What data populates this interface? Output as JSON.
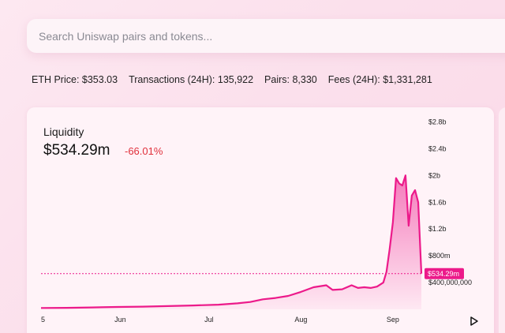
{
  "search": {
    "placeholder": "Search Uniswap pairs and tokens..."
  },
  "stats": {
    "eth_price": "ETH Price: $353.03",
    "transactions": "Transactions (24H): 135,922",
    "pairs": "Pairs: 8,330",
    "fees": "Fees (24H): $1,331,281"
  },
  "liquidity_card": {
    "title": "Liquidity",
    "value": "$534.29m",
    "change": "-66.01%"
  },
  "colors": {
    "accent": "#ec1a8a",
    "negative": "#e0303b",
    "background": "#fde8f1"
  },
  "icons": {
    "play": "play-icon"
  },
  "chart_data": {
    "type": "area",
    "title": "",
    "xlabel": "",
    "ylabel": "",
    "y_tick_labels": [
      "$2.8b",
      "$2.4b",
      "$2b",
      "$1.6b",
      "$1.2b",
      "$800m",
      "$400,000,000"
    ],
    "y_ticks": [
      2800,
      2400,
      2000,
      1600,
      1200,
      800,
      400
    ],
    "ylim": [
      0,
      2900
    ],
    "x_tick_labels": [
      "5",
      "Jun",
      "Jul",
      "Aug",
      "Sep"
    ],
    "x_ticks": [
      0,
      25,
      53,
      82,
      111
    ],
    "xlim": [
      0,
      120
    ],
    "current_value_label": "$534.29m",
    "current_value": 534,
    "grid": false,
    "series": [
      {
        "x": [
          0,
          8,
          16,
          24,
          32,
          40,
          48,
          56,
          62,
          66,
          70,
          74,
          78,
          82,
          86,
          90,
          92,
          95,
          98,
          100,
          102,
          104,
          106,
          108,
          109,
          110,
          111,
          112,
          113,
          114,
          115,
          116,
          117,
          118,
          119,
          120
        ],
        "values": [
          20,
          22,
          28,
          35,
          40,
          48,
          58,
          70,
          90,
          110,
          150,
          170,
          200,
          260,
          330,
          360,
          290,
          300,
          360,
          320,
          330,
          320,
          340,
          400,
          560,
          900,
          1300,
          1960,
          1880,
          1850,
          2000,
          1250,
          1700,
          1780,
          1600,
          534
        ]
      }
    ]
  }
}
